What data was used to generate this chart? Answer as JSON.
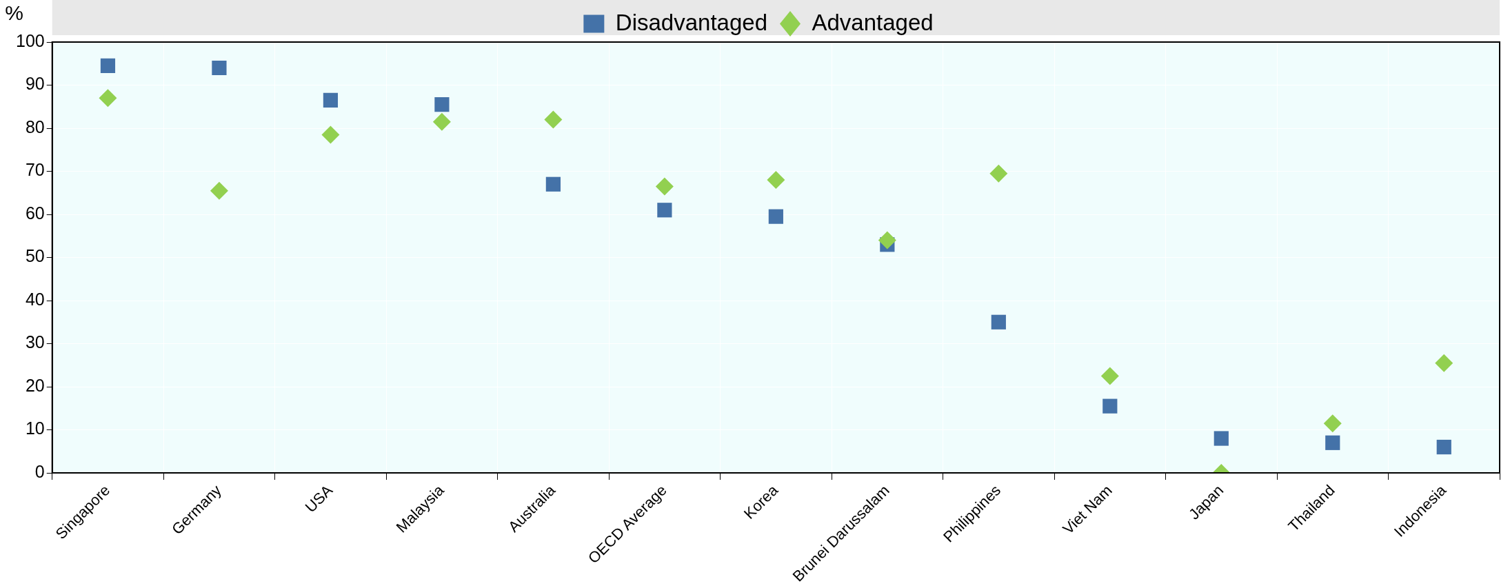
{
  "chart_data": {
    "type": "scatter",
    "ylabel": "%",
    "categories": [
      "Singapore",
      "Germany",
      "USA",
      "Malaysia",
      "Australia",
      "OECD Average",
      "Korea",
      "Brunei Darussalam",
      "Philippines",
      "Viet Nam",
      "Japan",
      "Thailand",
      "Indonesia"
    ],
    "series": [
      {
        "name": "Disadvantaged",
        "color": "#4472a8",
        "marker": "square",
        "values": [
          94.5,
          94,
          86.5,
          85.5,
          67,
          61,
          59.5,
          53,
          35,
          15.5,
          8,
          7,
          6
        ]
      },
      {
        "name": "Advantaged",
        "color": "#92d050",
        "marker": "diamond",
        "values": [
          87,
          65.5,
          78.5,
          81.5,
          82,
          66.5,
          68,
          54,
          69.5,
          22.5,
          0,
          11.5,
          25.5
        ]
      }
    ],
    "ylim": [
      0,
      100
    ],
    "yticks": [
      0,
      10,
      20,
      30,
      40,
      50,
      60,
      70,
      80,
      90,
      100
    ],
    "grid": true,
    "legend": "top"
  }
}
